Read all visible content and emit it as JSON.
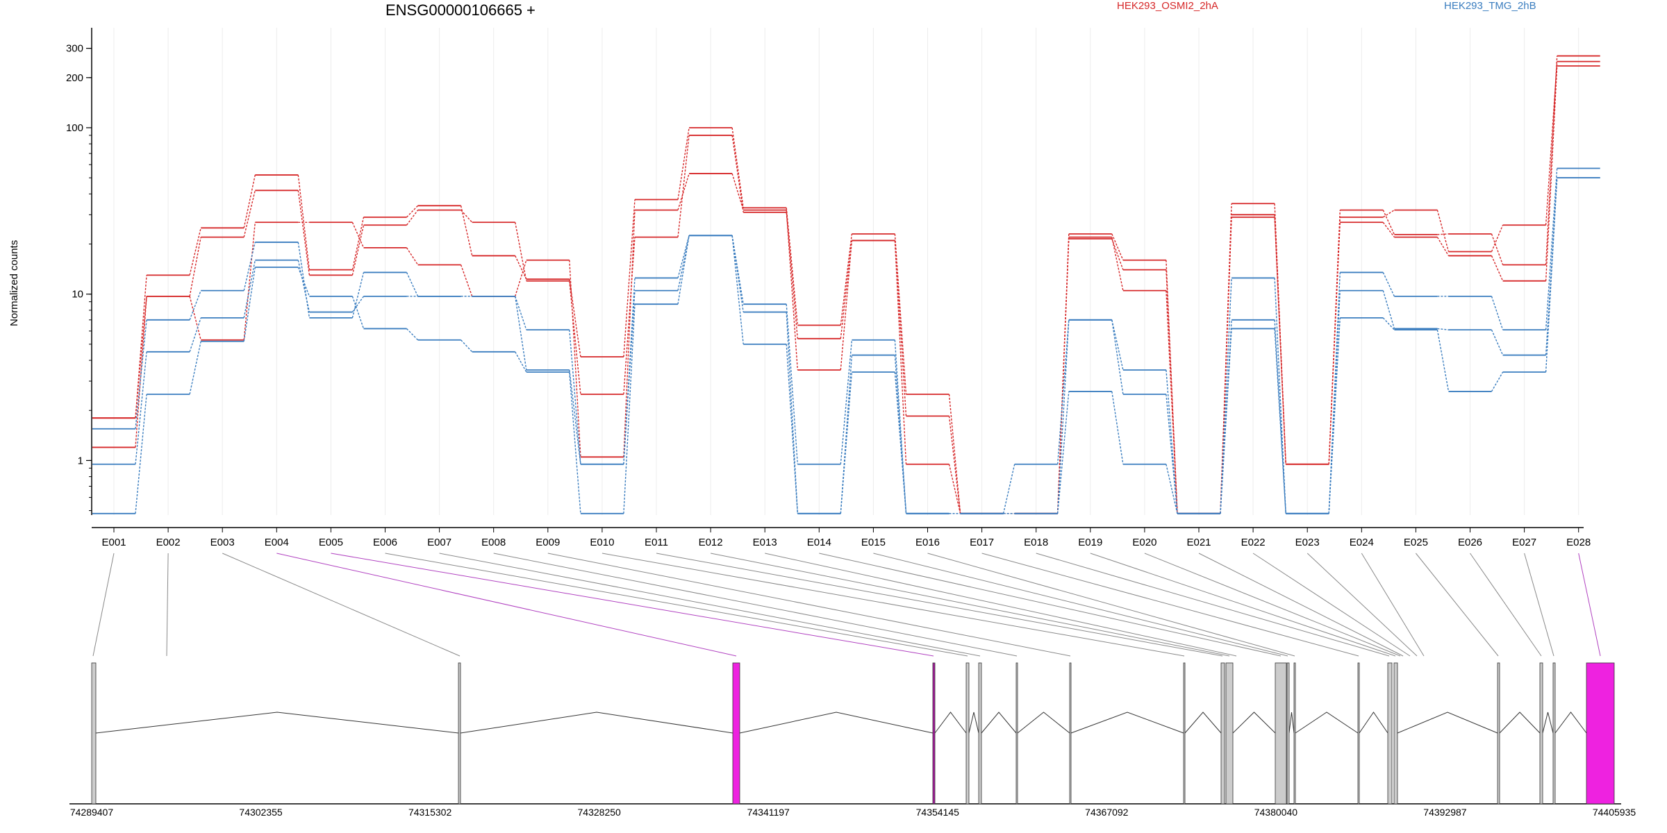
{
  "chart_data": {
    "type": "line",
    "title": "ENSG00000106665 +",
    "ylabel": "Normalized counts",
    "yscale": "log",
    "ylim": [
      0.47,
      380
    ],
    "yticks": [
      1,
      10,
      100,
      200,
      300
    ],
    "categories": [
      "E001",
      "E002",
      "E003",
      "E004",
      "E005",
      "E006",
      "E007",
      "E008",
      "E009",
      "E010",
      "E011",
      "E012",
      "E013",
      "E014",
      "E015",
      "E016",
      "E017",
      "E018",
      "E019",
      "E020",
      "E021",
      "E022",
      "E023",
      "E024",
      "E025",
      "E026",
      "E027",
      "E028"
    ],
    "legend": [
      {
        "label": "HEK293_OSMI2_2hA",
        "color": "#d62728"
      },
      {
        "label": "HEK293_TMG_2hB",
        "color": "#3a7dbf"
      }
    ],
    "series": [
      {
        "color": "#d62728",
        "values": [
          1.2,
          9.7,
          22.0,
          42.0,
          13.0,
          26.0,
          32.0,
          27.0,
          12.0,
          2.5,
          22.0,
          90.0,
          31.0,
          5.4,
          21.0,
          1.85,
          0.48,
          0.48,
          21.5,
          14.0,
          0.48,
          29.0,
          0.95,
          27.0,
          22.0,
          17.0,
          12.0,
          235.0
        ]
      },
      {
        "color": "#d62728",
        "values": [
          1.8,
          13.0,
          25.0,
          52.0,
          14.0,
          29.0,
          34.0,
          17.0,
          12.3,
          4.2,
          37.0,
          100.0,
          33.0,
          6.5,
          23.0,
          2.5,
          0.48,
          0.48,
          23.0,
          16.0,
          0.48,
          35.0,
          0.95,
          32.0,
          22.8,
          23.0,
          15.0,
          270.0
        ]
      },
      {
        "color": "#d62728",
        "values": [
          1.8,
          9.7,
          5.3,
          27.0,
          27.0,
          19.0,
          15.0,
          9.7,
          16.0,
          1.05,
          32.0,
          53.0,
          32.0,
          3.5,
          21.0,
          0.95,
          0.48,
          0.48,
          22.0,
          10.5,
          0.48,
          30.0,
          0.95,
          29.0,
          32.0,
          18.0,
          26.0,
          250.0
        ]
      },
      {
        "color": "#3a7dbf",
        "values": [
          1.55,
          7.0,
          10.5,
          20.5,
          7.2,
          13.5,
          9.7,
          9.7,
          6.1,
          0.95,
          12.5,
          22.5,
          8.7,
          0.95,
          5.3,
          0.48,
          0.48,
          0.95,
          7.0,
          3.5,
          0.48,
          12.5,
          0.48,
          13.5,
          9.7,
          9.7,
          6.1,
          57.0
        ]
      },
      {
        "color": "#3a7dbf",
        "values": [
          0.95,
          4.5,
          7.2,
          16.0,
          7.8,
          9.7,
          9.7,
          9.7,
          3.5,
          0.95,
          10.5,
          22.5,
          7.8,
          0.48,
          4.3,
          0.48,
          0.48,
          0.48,
          7.0,
          2.5,
          0.48,
          7.0,
          0.48,
          10.5,
          6.2,
          6.1,
          4.3,
          50.0
        ]
      },
      {
        "color": "#3a7dbf",
        "values": [
          0.48,
          2.5,
          5.2,
          14.5,
          9.7,
          6.2,
          5.3,
          4.5,
          3.4,
          0.48,
          8.7,
          22.5,
          5.0,
          0.48,
          3.4,
          0.48,
          0.48,
          0.48,
          2.6,
          0.95,
          0.48,
          6.2,
          0.48,
          7.2,
          6.1,
          2.6,
          3.4,
          50.0
        ]
      }
    ],
    "genomic_axis": {
      "tick_labels": [
        "74289407",
        "74302355",
        "74315302",
        "74328250",
        "74341197",
        "74354145",
        "74367092",
        "74380040",
        "74392987",
        "74405935"
      ],
      "start": 74289407,
      "end": 74405935
    }
  }
}
